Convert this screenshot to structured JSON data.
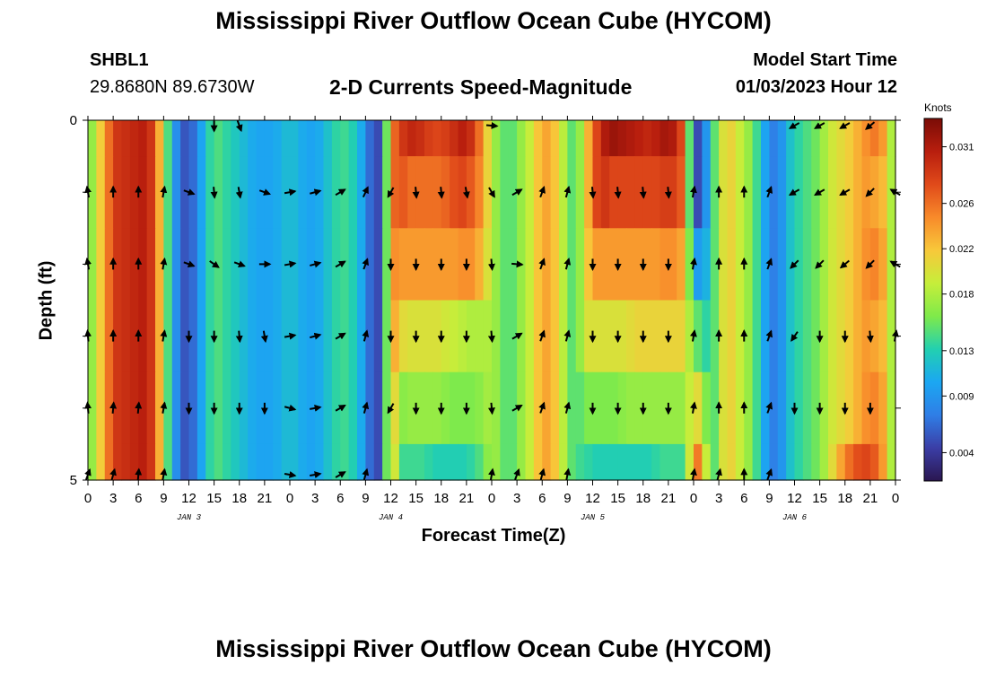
{
  "header": {
    "title": "Mississippi River Outflow Ocean Cube (HYCOM)",
    "station": "SHBL1",
    "coordinates": "29.8680N  89.6730W",
    "subtitle": "2-D Currents Speed-Magnitude",
    "model_start_label": "Model Start Time",
    "model_start_value": "01/03/2023 Hour 12"
  },
  "footer": {
    "title": "Mississippi River Outflow Ocean Cube (HYCOM)"
  },
  "colors": {
    "colormap": [
      "#2a1650",
      "#3b3ea6",
      "#2f7ee6",
      "#1ba7f2",
      "#22d0b0",
      "#7fea4a",
      "#c6ee3a",
      "#f8c83a",
      "#f88a2a",
      "#e04a1a",
      "#b81e0e",
      "#7a0c06"
    ]
  },
  "chart_data": {
    "type": "heatmap",
    "title": "2-D Currents Speed-Magnitude",
    "xlabel": "Forecast Time(Z)",
    "ylabel": "Depth (ft)",
    "colorbar_label": "Knots",
    "colorbar_ticks": [
      0.004,
      0.009,
      0.013,
      0.018,
      0.022,
      0.026,
      0.031
    ],
    "colorbar_range": [
      0.0015,
      0.0335
    ],
    "x_range": [
      0,
      96
    ],
    "x_tick_hours": [
      0,
      3,
      6,
      9,
      12,
      15,
      18,
      21,
      24,
      27,
      30,
      33,
      36,
      39,
      42,
      45,
      48,
      51,
      54,
      57,
      60,
      63,
      66,
      69,
      72,
      75,
      78,
      81,
      84,
      87,
      90,
      93,
      96
    ],
    "x_tick_labels": [
      "0",
      "3",
      "6",
      "9",
      "12",
      "15",
      "18",
      "21",
      "0",
      "3",
      "6",
      "9",
      "12",
      "15",
      "18",
      "21",
      "0",
      "3",
      "6",
      "9",
      "12",
      "15",
      "18",
      "21",
      "0",
      "3",
      "6",
      "9",
      "12",
      "15",
      "18",
      "21",
      "0"
    ],
    "day_labels": [
      {
        "text": "JAN 3",
        "hour": 12
      },
      {
        "text": "JAN 4",
        "hour": 36
      },
      {
        "text": "JAN 5",
        "hour": 60
      },
      {
        "text": "JAN 6",
        "hour": 84
      }
    ],
    "y_range": [
      0,
      5
    ],
    "y_ticks": [
      0,
      5
    ],
    "depth_rows": [
      0,
      1,
      2,
      3,
      4,
      5
    ],
    "speed_profiles": {
      "hours": [
        0,
        1,
        2,
        3,
        4,
        5,
        6,
        7,
        8,
        9,
        10,
        11,
        12,
        13,
        14,
        15,
        16,
        17,
        18,
        19,
        20,
        21,
        22,
        23,
        24,
        25,
        26,
        27,
        28,
        29,
        30,
        31,
        32,
        33,
        34,
        35,
        36,
        37,
        38,
        39,
        40,
        41,
        42,
        43,
        44,
        45,
        46,
        47,
        48,
        49,
        50,
        51,
        52,
        53,
        54,
        55,
        56,
        57,
        58,
        59,
        60,
        61,
        62,
        63,
        64,
        65,
        66,
        67,
        68,
        69,
        70,
        71,
        72,
        73,
        74,
        75,
        76,
        77,
        78,
        79,
        80,
        81,
        82,
        83,
        84,
        85,
        86,
        87,
        88,
        89,
        90,
        91,
        92,
        93,
        94,
        95,
        96
      ],
      "speeds": [
        [
          0.015,
          0.019,
          0.024,
          0.028,
          0.03,
          0.029,
          0.031,
          0.03,
          0.028,
          0.018,
          0.011,
          0.006,
          0.005,
          0.008,
          0.012,
          0.015,
          0.014,
          0.013,
          0.012,
          0.011,
          0.01,
          0.01,
          0.01,
          0.011,
          0.012,
          0.011,
          0.01,
          0.01,
          0.011,
          0.013,
          0.014,
          0.014,
          0.012,
          0.009,
          0.004,
          0.006,
          0.025,
          0.028,
          0.03,
          0.03,
          0.029,
          0.028,
          0.028,
          0.029,
          0.03,
          0.031,
          0.028,
          0.024,
          0.018,
          0.016,
          0.014,
          0.016,
          0.018,
          0.02,
          0.024,
          0.023,
          0.021,
          0.016,
          0.014,
          0.02,
          0.026,
          0.03,
          0.032,
          0.032,
          0.031,
          0.031,
          0.03,
          0.03,
          0.031,
          0.032,
          0.03,
          0.026,
          0.004,
          0.006,
          0.012,
          0.018,
          0.022,
          0.02,
          0.018,
          0.016,
          0.012,
          0.008,
          0.007,
          0.011,
          0.013,
          0.014,
          0.015,
          0.016,
          0.019,
          0.02,
          0.021,
          0.022,
          0.024,
          0.025,
          0.026,
          0.022,
          0.014
        ],
        [
          0.015,
          0.019,
          0.024,
          0.028,
          0.03,
          0.029,
          0.031,
          0.03,
          0.028,
          0.018,
          0.011,
          0.006,
          0.005,
          0.008,
          0.012,
          0.015,
          0.014,
          0.013,
          0.012,
          0.011,
          0.01,
          0.01,
          0.01,
          0.011,
          0.012,
          0.011,
          0.01,
          0.01,
          0.011,
          0.013,
          0.014,
          0.014,
          0.012,
          0.009,
          0.004,
          0.006,
          0.025,
          0.028,
          0.026,
          0.026,
          0.026,
          0.026,
          0.026,
          0.027,
          0.028,
          0.028,
          0.026,
          0.024,
          0.018,
          0.016,
          0.014,
          0.016,
          0.018,
          0.02,
          0.024,
          0.023,
          0.021,
          0.016,
          0.014,
          0.02,
          0.026,
          0.03,
          0.028,
          0.028,
          0.028,
          0.028,
          0.028,
          0.028,
          0.028,
          0.029,
          0.028,
          0.026,
          0.004,
          0.006,
          0.012,
          0.018,
          0.022,
          0.02,
          0.018,
          0.016,
          0.012,
          0.008,
          0.007,
          0.011,
          0.013,
          0.014,
          0.015,
          0.016,
          0.019,
          0.02,
          0.021,
          0.022,
          0.024,
          0.024,
          0.023,
          0.022,
          0.014
        ],
        [
          0.015,
          0.019,
          0.024,
          0.028,
          0.03,
          0.029,
          0.031,
          0.03,
          0.028,
          0.018,
          0.011,
          0.006,
          0.005,
          0.008,
          0.012,
          0.015,
          0.014,
          0.013,
          0.012,
          0.011,
          0.01,
          0.01,
          0.01,
          0.011,
          0.012,
          0.011,
          0.01,
          0.01,
          0.011,
          0.013,
          0.014,
          0.014,
          0.012,
          0.009,
          0.004,
          0.006,
          0.025,
          0.024,
          0.024,
          0.024,
          0.024,
          0.024,
          0.024,
          0.024,
          0.024,
          0.025,
          0.024,
          0.022,
          0.018,
          0.016,
          0.014,
          0.016,
          0.018,
          0.02,
          0.024,
          0.023,
          0.021,
          0.016,
          0.014,
          0.02,
          0.024,
          0.024,
          0.024,
          0.024,
          0.024,
          0.024,
          0.024,
          0.024,
          0.024,
          0.025,
          0.024,
          0.023,
          0.009,
          0.01,
          0.012,
          0.018,
          0.022,
          0.02,
          0.018,
          0.016,
          0.012,
          0.008,
          0.007,
          0.011,
          0.013,
          0.014,
          0.015,
          0.016,
          0.019,
          0.02,
          0.021,
          0.022,
          0.024,
          0.025,
          0.025,
          0.022,
          0.014
        ],
        [
          0.015,
          0.019,
          0.024,
          0.028,
          0.03,
          0.029,
          0.031,
          0.03,
          0.028,
          0.018,
          0.011,
          0.006,
          0.005,
          0.008,
          0.012,
          0.015,
          0.014,
          0.013,
          0.012,
          0.011,
          0.01,
          0.01,
          0.01,
          0.011,
          0.012,
          0.011,
          0.01,
          0.01,
          0.011,
          0.013,
          0.014,
          0.014,
          0.012,
          0.009,
          0.004,
          0.006,
          0.025,
          0.021,
          0.02,
          0.02,
          0.02,
          0.02,
          0.02,
          0.019,
          0.019,
          0.018,
          0.018,
          0.018,
          0.018,
          0.016,
          0.014,
          0.016,
          0.018,
          0.02,
          0.024,
          0.023,
          0.021,
          0.016,
          0.014,
          0.02,
          0.02,
          0.02,
          0.02,
          0.02,
          0.02,
          0.021,
          0.021,
          0.021,
          0.021,
          0.021,
          0.021,
          0.021,
          0.015,
          0.015,
          0.012,
          0.018,
          0.022,
          0.02,
          0.018,
          0.016,
          0.012,
          0.008,
          0.007,
          0.011,
          0.013,
          0.014,
          0.015,
          0.016,
          0.019,
          0.02,
          0.021,
          0.022,
          0.024,
          0.024,
          0.023,
          0.022,
          0.014
        ],
        [
          0.015,
          0.019,
          0.024,
          0.028,
          0.03,
          0.029,
          0.031,
          0.03,
          0.028,
          0.018,
          0.011,
          0.006,
          0.005,
          0.008,
          0.012,
          0.015,
          0.014,
          0.013,
          0.012,
          0.011,
          0.01,
          0.01,
          0.01,
          0.011,
          0.012,
          0.011,
          0.01,
          0.01,
          0.011,
          0.013,
          0.014,
          0.014,
          0.012,
          0.009,
          0.004,
          0.006,
          0.025,
          0.016,
          0.017,
          0.017,
          0.017,
          0.017,
          0.017,
          0.016,
          0.016,
          0.016,
          0.016,
          0.017,
          0.018,
          0.016,
          0.014,
          0.016,
          0.018,
          0.02,
          0.024,
          0.023,
          0.021,
          0.016,
          0.014,
          0.016,
          0.016,
          0.016,
          0.016,
          0.016,
          0.017,
          0.017,
          0.017,
          0.017,
          0.017,
          0.017,
          0.017,
          0.017,
          0.021,
          0.02,
          0.012,
          0.018,
          0.022,
          0.02,
          0.018,
          0.016,
          0.012,
          0.008,
          0.007,
          0.011,
          0.013,
          0.014,
          0.015,
          0.016,
          0.019,
          0.02,
          0.021,
          0.022,
          0.024,
          0.025,
          0.025,
          0.022,
          0.014
        ],
        [
          0.015,
          0.019,
          0.024,
          0.028,
          0.03,
          0.029,
          0.031,
          0.03,
          0.028,
          0.018,
          0.011,
          0.006,
          0.005,
          0.008,
          0.012,
          0.015,
          0.014,
          0.013,
          0.012,
          0.011,
          0.01,
          0.01,
          0.01,
          0.011,
          0.012,
          0.011,
          0.01,
          0.01,
          0.011,
          0.013,
          0.014,
          0.014,
          0.012,
          0.009,
          0.004,
          0.006,
          0.025,
          0.014,
          0.014,
          0.014,
          0.014,
          0.013,
          0.013,
          0.013,
          0.013,
          0.013,
          0.014,
          0.015,
          0.018,
          0.016,
          0.014,
          0.016,
          0.018,
          0.02,
          0.024,
          0.023,
          0.021,
          0.016,
          0.014,
          0.014,
          0.013,
          0.013,
          0.013,
          0.013,
          0.013,
          0.013,
          0.013,
          0.013,
          0.014,
          0.014,
          0.014,
          0.014,
          0.025,
          0.026,
          0.012,
          0.018,
          0.022,
          0.02,
          0.018,
          0.016,
          0.012,
          0.008,
          0.007,
          0.011,
          0.013,
          0.014,
          0.015,
          0.016,
          0.019,
          0.022,
          0.025,
          0.027,
          0.028,
          0.028,
          0.026,
          0.022,
          0.014
        ]
      ]
    },
    "vector_hours": [
      0,
      3,
      6,
      9,
      12,
      15,
      18,
      21,
      24,
      27,
      30,
      33,
      36,
      39,
      42,
      45,
      48,
      51,
      54,
      57,
      60,
      63,
      66,
      69,
      72,
      75,
      78,
      81,
      84,
      87,
      90,
      93,
      96
    ],
    "vector_directions_deg": [
      [
        null,
        null,
        null,
        null,
        null,
        180,
        160,
        null,
        null,
        null,
        null,
        null,
        null,
        null,
        null,
        null,
        95,
        null,
        null,
        null,
        null,
        null,
        null,
        null,
        null,
        null,
        null,
        null,
        240,
        240,
        240,
        230,
        null
      ],
      [
        350,
        0,
        0,
        10,
        110,
        175,
        170,
        110,
        80,
        75,
        60,
        25,
        210,
        175,
        175,
        170,
        150,
        60,
        20,
        15,
        175,
        175,
        175,
        175,
        10,
        0,
        0,
        20,
        240,
        240,
        240,
        225,
        300
      ],
      [
        350,
        0,
        0,
        10,
        110,
        125,
        110,
        90,
        80,
        75,
        60,
        20,
        180,
        180,
        180,
        180,
        175,
        95,
        20,
        15,
        180,
        180,
        180,
        180,
        10,
        0,
        0,
        20,
        225,
        225,
        230,
        225,
        300
      ],
      [
        355,
        0,
        0,
        10,
        180,
        180,
        175,
        170,
        80,
        75,
        60,
        15,
        180,
        180,
        180,
        180,
        175,
        60,
        20,
        15,
        180,
        180,
        180,
        180,
        10,
        0,
        0,
        20,
        215,
        180,
        180,
        175,
        10
      ],
      [
        355,
        5,
        5,
        10,
        180,
        180,
        180,
        180,
        105,
        80,
        60,
        15,
        210,
        180,
        180,
        180,
        175,
        60,
        20,
        15,
        180,
        180,
        180,
        180,
        10,
        0,
        0,
        20,
        180,
        180,
        180,
        180,
        null
      ],
      [
        20,
        15,
        5,
        10,
        null,
        null,
        null,
        null,
        100,
        80,
        60,
        15,
        null,
        null,
        null,
        null,
        10,
        20,
        15,
        10,
        null,
        null,
        null,
        null,
        10,
        15,
        0,
        20,
        null,
        null,
        null,
        null,
        null
      ]
    ]
  }
}
